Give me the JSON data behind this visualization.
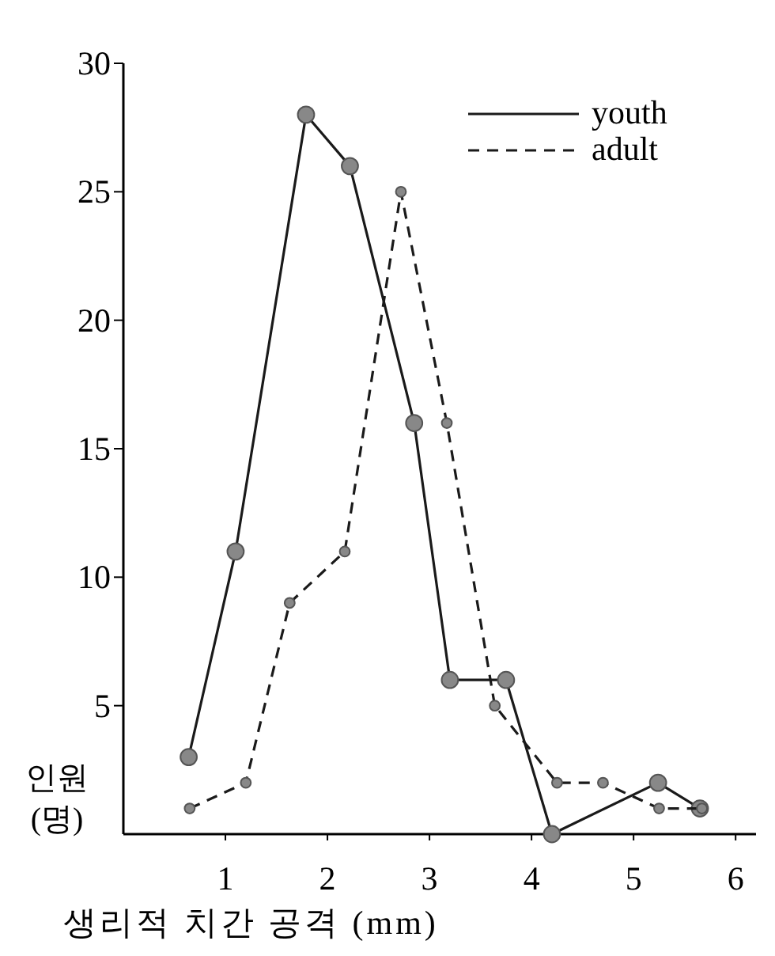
{
  "chart_data": {
    "type": "line",
    "xlabel": "생리적 치간 공격 (mm)",
    "ylabel": "인원 (명)",
    "xlim": [
      0,
      6.2
    ],
    "ylim": [
      0,
      30
    ],
    "xticks": [
      1,
      2,
      3,
      4,
      5,
      6
    ],
    "yticks": [
      5,
      10,
      15,
      20,
      25,
      30
    ],
    "legend": "top right",
    "marker": "circle",
    "grid": false,
    "series": [
      {
        "name": "youth",
        "color": "#1a1a1a",
        "line_style": "solid",
        "x": [
          0.64,
          1.1,
          1.79,
          2.22,
          2.85,
          3.2,
          3.75,
          4.2,
          5.24,
          5.65
        ],
        "values": [
          3,
          11,
          28,
          26,
          16,
          6,
          6,
          0,
          2,
          1
        ]
      },
      {
        "name": "adult",
        "color": "#1a1a1a",
        "line_style": "dashed",
        "x": [
          0.65,
          1.2,
          1.63,
          2.17,
          2.72,
          3.17,
          3.64,
          4.25,
          4.7,
          5.25,
          5.67
        ],
        "values": [
          1,
          2,
          9,
          11,
          25,
          16,
          5,
          2,
          2,
          1,
          1
        ]
      }
    ]
  }
}
